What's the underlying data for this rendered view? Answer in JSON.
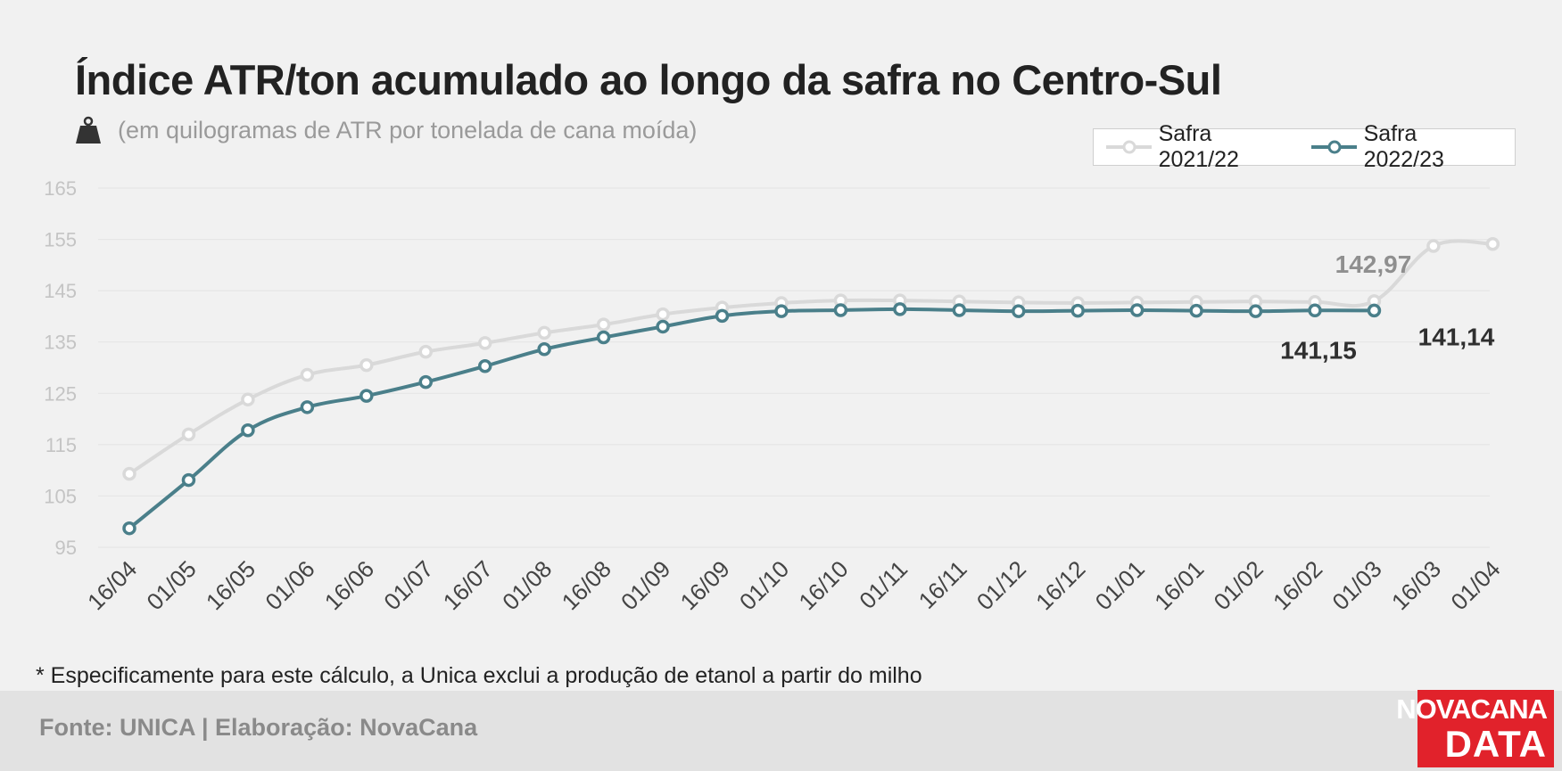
{
  "header": {
    "title": "Índice ATR/ton acumulado ao longo da safra no Centro-Sul",
    "subtitle": "(em quilogramas de ATR por tonelada de cana moída)",
    "subtitle_icon": "weight-icon"
  },
  "legend": {
    "items": [
      {
        "label": "Safra 2021/22"
      },
      {
        "label": "Safra 2022/23"
      }
    ]
  },
  "chart_data": {
    "type": "line",
    "title": "Índice ATR/ton acumulado ao longo da safra no Centro-Sul",
    "subtitle": "(em quilogramas de ATR por tonelada de cana moída)",
    "xlabel": "",
    "ylabel": "",
    "categories": [
      "16/04",
      "01/05",
      "16/05",
      "01/06",
      "16/06",
      "01/07",
      "16/07",
      "01/08",
      "16/08",
      "01/09",
      "16/09",
      "01/10",
      "16/10",
      "01/11",
      "16/11",
      "01/12",
      "16/12",
      "01/01",
      "16/01",
      "01/02",
      "16/02",
      "01/03",
      "16/03",
      "01/04"
    ],
    "y_ticks": [
      "165",
      "155",
      "145",
      "135",
      "125",
      "115",
      "105",
      "95"
    ],
    "ylim": [
      95,
      165
    ],
    "grid": true,
    "legend_position": "top-right",
    "series": [
      {
        "name": "Safra 2021/22",
        "color": "#d9d9d9",
        "values": [
          109.3,
          117.0,
          123.8,
          128.6,
          130.5,
          133.1,
          134.8,
          136.8,
          138.4,
          140.4,
          141.7,
          142.6,
          143.1,
          143.1,
          142.9,
          142.7,
          142.6,
          142.7,
          142.8,
          142.9,
          142.8,
          142.97,
          153.7,
          154.1
        ]
      },
      {
        "name": "Safra 2022/23",
        "color": "#4a7f8a",
        "values": [
          98.7,
          108.1,
          117.8,
          122.3,
          124.5,
          127.2,
          130.3,
          133.6,
          135.9,
          138.0,
          140.1,
          141.0,
          141.2,
          141.4,
          141.2,
          141.0,
          141.1,
          141.2,
          141.1,
          141.0,
          141.15,
          141.14,
          null,
          null
        ]
      }
    ],
    "annotations": [
      {
        "text": "142,97",
        "series": "Safra 2021/22",
        "category": "01/03"
      },
      {
        "text": "141,15",
        "series": "Safra 2022/23",
        "category": "16/02"
      },
      {
        "text": "141,14",
        "series": "Safra 2022/23",
        "category": "01/03"
      }
    ]
  },
  "footnote": "* Especificamente para este cálculo, a Unica exclui a produção de etanol a partir do milho",
  "footer": {
    "source": "Fonte: UNICA | Elaboração: NovaCana",
    "logo_top": "NOVACANA",
    "logo_bottom": "DATA"
  },
  "colors": {
    "accent": "#4a7f8a",
    "previous_season": "#d9d9d9",
    "brand_red": "#e1222b"
  }
}
